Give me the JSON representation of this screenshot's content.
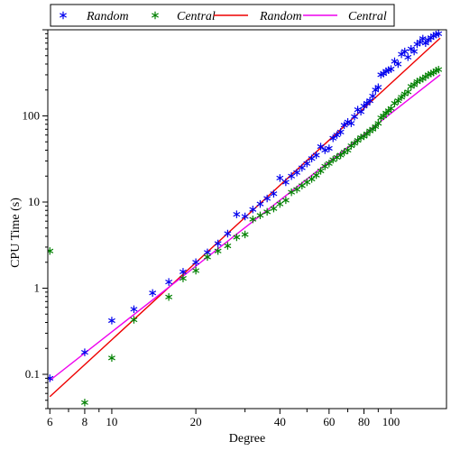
{
  "chart_data": {
    "type": "scatter",
    "title": "",
    "xlabel": "Degree",
    "ylabel": "CPU Time (s)",
    "x_scale": "log",
    "y_scale": "log",
    "xlim": [
      5.9,
      158
    ],
    "ylim": [
      0.04,
      1000
    ],
    "x_ticks": [
      {
        "v": 6,
        "label": "6"
      },
      {
        "v": 7,
        "label": ""
      },
      {
        "v": 8,
        "label": "8"
      },
      {
        "v": 9,
        "label": ""
      },
      {
        "v": 10,
        "label": "10"
      },
      {
        "v": 20,
        "label": "20"
      },
      {
        "v": 30,
        "label": ""
      },
      {
        "v": 40,
        "label": "40"
      },
      {
        "v": 50,
        "label": ""
      },
      {
        "v": 60,
        "label": "60"
      },
      {
        "v": 70,
        "label": ""
      },
      {
        "v": 80,
        "label": "80"
      },
      {
        "v": 90,
        "label": ""
      },
      {
        "v": 100,
        "label": "100"
      }
    ],
    "y_ticks": [
      {
        "v": 0.1,
        "label": "0.1"
      },
      {
        "v": 1,
        "label": "1"
      },
      {
        "v": 10,
        "label": "10"
      },
      {
        "v": 100,
        "label": "100"
      }
    ],
    "grid": false,
    "legend": {
      "position": "top",
      "entries": [
        {
          "label": "Random",
          "kind": "marker",
          "color": "#0000ee"
        },
        {
          "label": "Central",
          "kind": "marker",
          "color": "#008000"
        },
        {
          "label": "Random",
          "kind": "line",
          "color": "#ee0000"
        },
        {
          "label": "Central",
          "kind": "line",
          "color": "#ee00ee"
        }
      ]
    },
    "series": [
      {
        "name": "Random",
        "kind": "scatter",
        "color": "#0000ee",
        "x": [
          6,
          8,
          10,
          12,
          14,
          16,
          18,
          20,
          22,
          24,
          26,
          28,
          30,
          32,
          34,
          36,
          38,
          40,
          42,
          44,
          46,
          48,
          50,
          52,
          54,
          56,
          58,
          60,
          62,
          64,
          66,
          68,
          70,
          72,
          74,
          76,
          78,
          80,
          82,
          84,
          86,
          88,
          90,
          92,
          94,
          96,
          98,
          100,
          103,
          106,
          109,
          112,
          115,
          118,
          121,
          124,
          127,
          130,
          133,
          136,
          139,
          142,
          145,
          148
        ],
        "y": [
          0.09,
          0.18,
          0.42,
          0.57,
          0.88,
          1.18,
          1.55,
          2.0,
          2.6,
          3.3,
          4.3,
          7.2,
          6.8,
          8.2,
          9.5,
          11.0,
          12.5,
          19.0,
          17.0,
          20.0,
          22.0,
          25.0,
          28.0,
          32.0,
          35.0,
          44.0,
          40.0,
          42.0,
          55.0,
          60.0,
          65.0,
          78.0,
          85.0,
          82.0,
          98.0,
          118.0,
          112.0,
          130.0,
          140.0,
          150.0,
          170.0,
          200.0,
          215.0,
          300.0,
          310.0,
          330.0,
          340.0,
          350.0,
          430.0,
          400.0,
          520.0,
          560.0,
          480.0,
          600.0,
          560.0,
          680.0,
          720.0,
          790.0,
          700.0,
          760.0,
          810.0,
          850.0,
          880.0,
          900.0
        ]
      },
      {
        "name": "Central",
        "kind": "scatter",
        "color": "#008000",
        "x": [
          6,
          8,
          10,
          12,
          16,
          18,
          20,
          22,
          24,
          26,
          28,
          30,
          32,
          34,
          36,
          38,
          40,
          42,
          44,
          46,
          48,
          50,
          52,
          54,
          56,
          58,
          60,
          62,
          64,
          66,
          68,
          70,
          72,
          74,
          76,
          78,
          80,
          82,
          84,
          86,
          88,
          90,
          92,
          94,
          96,
          98,
          100,
          103,
          106,
          109,
          112,
          115,
          118,
          121,
          124,
          127,
          130,
          133,
          136,
          139,
          142,
          145,
          148
        ],
        "y": [
          2.7,
          0.047,
          0.155,
          0.43,
          0.79,
          1.3,
          1.6,
          2.3,
          2.7,
          3.1,
          3.9,
          4.2,
          6.3,
          7.0,
          7.7,
          8.4,
          9.5,
          10.5,
          13.0,
          14.0,
          15.5,
          17.0,
          18.5,
          20.5,
          23.0,
          26.0,
          28.0,
          31.0,
          33.0,
          35.0,
          38.0,
          40.0,
          45.0,
          48.0,
          52.0,
          56.0,
          58.0,
          62.0,
          67.0,
          70.0,
          75.0,
          82.0,
          95.0,
          100.0,
          108.0,
          115.0,
          122.0,
          140.0,
          150.0,
          165.0,
          180.0,
          190.0,
          220.0,
          230.0,
          250.0,
          260.0,
          270.0,
          285.0,
          300.0,
          310.0,
          320.0,
          335.0,
          345.0
        ]
      },
      {
        "name": "Random",
        "kind": "line",
        "color": "#ee0000",
        "x": [
          6,
          150
        ],
        "y": [
          0.055,
          800
        ]
      },
      {
        "name": "Central",
        "kind": "line",
        "color": "#ee00ee",
        "x": [
          6,
          150
        ],
        "y": [
          0.085,
          300
        ]
      }
    ]
  }
}
